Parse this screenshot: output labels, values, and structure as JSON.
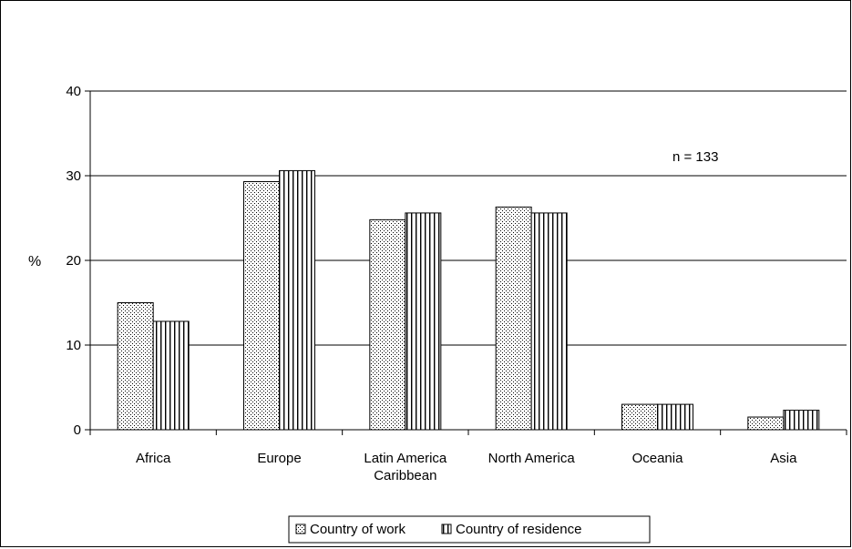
{
  "chart_data": {
    "type": "bar",
    "categories": [
      [
        "Africa"
      ],
      [
        "Europe"
      ],
      [
        "Latin America",
        "Caribbean"
      ],
      [
        "North America"
      ],
      [
        "Oceania"
      ],
      [
        "Asia"
      ]
    ],
    "series": [
      {
        "name": "Country of work",
        "pattern": "dots",
        "values": [
          15.0,
          29.3,
          24.8,
          26.3,
          3.0,
          1.5
        ]
      },
      {
        "name": "Country of residence",
        "pattern": "vertical-lines",
        "values": [
          12.8,
          30.6,
          25.6,
          25.6,
          3.0,
          2.3
        ]
      }
    ],
    "title": "",
    "xlabel": "",
    "ylabel": "%",
    "ylim": [
      0,
      40
    ],
    "yticks": [
      0,
      10,
      20,
      30,
      40
    ],
    "grid": true,
    "legend_position": "bottom",
    "annotation": "n = 133",
    "colors": {
      "bar_fill": "#ffffff",
      "pattern": "#000000",
      "outline": "#000000",
      "gridline": "#000000"
    }
  }
}
